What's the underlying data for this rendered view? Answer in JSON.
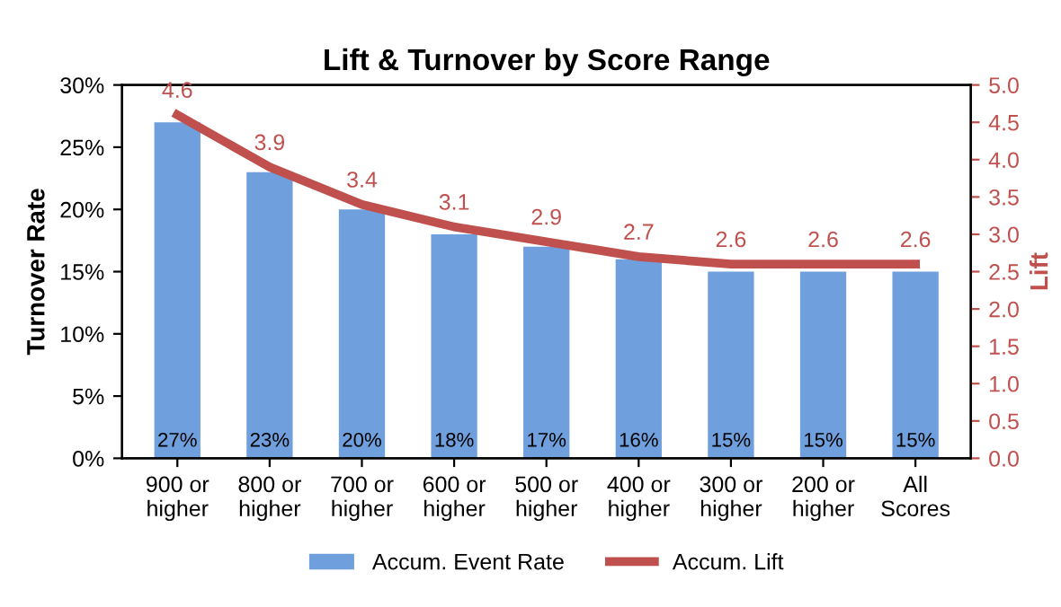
{
  "chart_data": {
    "type": "bar",
    "title": "Lift & Turnover by Score Range",
    "categories": [
      "900 or\nhigher",
      "800 or\nhigher",
      "700 or\nhigher",
      "600 or\nhigher",
      "500 or\nhigher",
      "400 or\nhigher",
      "300 or\nhigher",
      "200 or\nhigher",
      "All\nScores"
    ],
    "series": [
      {
        "name": "Accum. Event Rate",
        "color": "#6f9fdc",
        "values": [
          27,
          23,
          20,
          18,
          17,
          16,
          15,
          15,
          15
        ],
        "value_labels": [
          "27%",
          "23%",
          "20%",
          "18%",
          "17%",
          "16%",
          "15%",
          "15%",
          "15%"
        ]
      },
      {
        "name": "Accum. Lift",
        "type": "line",
        "axis": "y2",
        "color": "#c0504d",
        "values": [
          4.6,
          3.9,
          3.4,
          3.1,
          2.9,
          2.7,
          2.6,
          2.6,
          2.6
        ],
        "value_labels": [
          "4.6",
          "3.9",
          "3.4",
          "3.1",
          "2.9",
          "2.7",
          "2.6",
          "2.6",
          "2.6"
        ]
      }
    ],
    "ylabel": "Turnover Rate",
    "y2label": "Lift",
    "ylim": [
      0,
      30
    ],
    "yticks": [
      {
        "value": 0,
        "label": "0%"
      },
      {
        "value": 5,
        "label": "5%"
      },
      {
        "value": 10,
        "label": "10%"
      },
      {
        "value": 15,
        "label": "15%"
      },
      {
        "value": 20,
        "label": "20%"
      },
      {
        "value": 25,
        "label": "25%"
      },
      {
        "value": 30,
        "label": "30%"
      }
    ],
    "y2lim": [
      0,
      5
    ],
    "y2ticks": [
      {
        "value": 0,
        "label": "0.0"
      },
      {
        "value": 0.5,
        "label": "0.5"
      },
      {
        "value": 1,
        "label": "1.0"
      },
      {
        "value": 1.5,
        "label": "1.5"
      },
      {
        "value": 2,
        "label": "2.0"
      },
      {
        "value": 2.5,
        "label": "2.5"
      },
      {
        "value": 3,
        "label": "3.0"
      },
      {
        "value": 3.5,
        "label": "3.5"
      },
      {
        "value": 4,
        "label": "4.0"
      },
      {
        "value": 4.5,
        "label": "4.5"
      },
      {
        "value": 5,
        "label": "5.0"
      }
    ],
    "legend": "bottom",
    "grid": false
  }
}
